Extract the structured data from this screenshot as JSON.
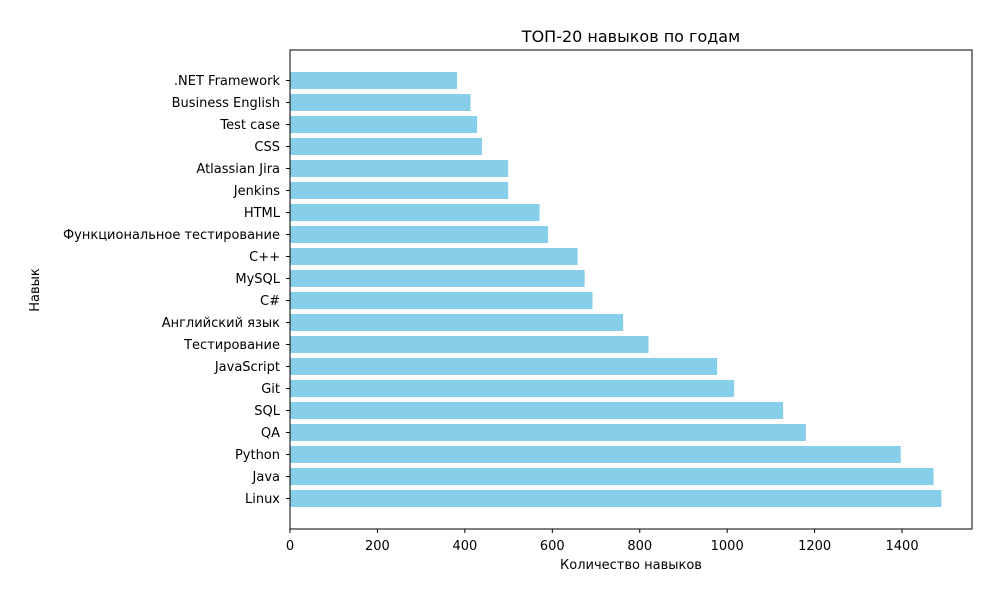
{
  "chart_data": {
    "type": "bar",
    "orientation": "horizontal",
    "title": "ТОП-20 навыков по годам",
    "xlabel": "Количество навыков",
    "ylabel": "Навык",
    "xlim": [
      0,
      1560
    ],
    "xticks": [
      0,
      200,
      400,
      600,
      800,
      1000,
      1200,
      1400
    ],
    "grid": false,
    "bar_color": "#87ceeb",
    "categories": [
      "Linux",
      "Java",
      "Python",
      "QA",
      "SQL",
      "Git",
      "JavaScript",
      "Тестирование",
      "Английский язык",
      "C#",
      "MySQL",
      "C++",
      "Функциональное тестирование",
      "HTML",
      "Jenkins",
      "Atlassian Jira",
      "CSS",
      "Test case",
      "Business English",
      ".NET Framework"
    ],
    "values": [
      1490,
      1472,
      1397,
      1180,
      1128,
      1016,
      977,
      820,
      762,
      692,
      674,
      658,
      590,
      571,
      499,
      499,
      439,
      428,
      413,
      382
    ]
  }
}
